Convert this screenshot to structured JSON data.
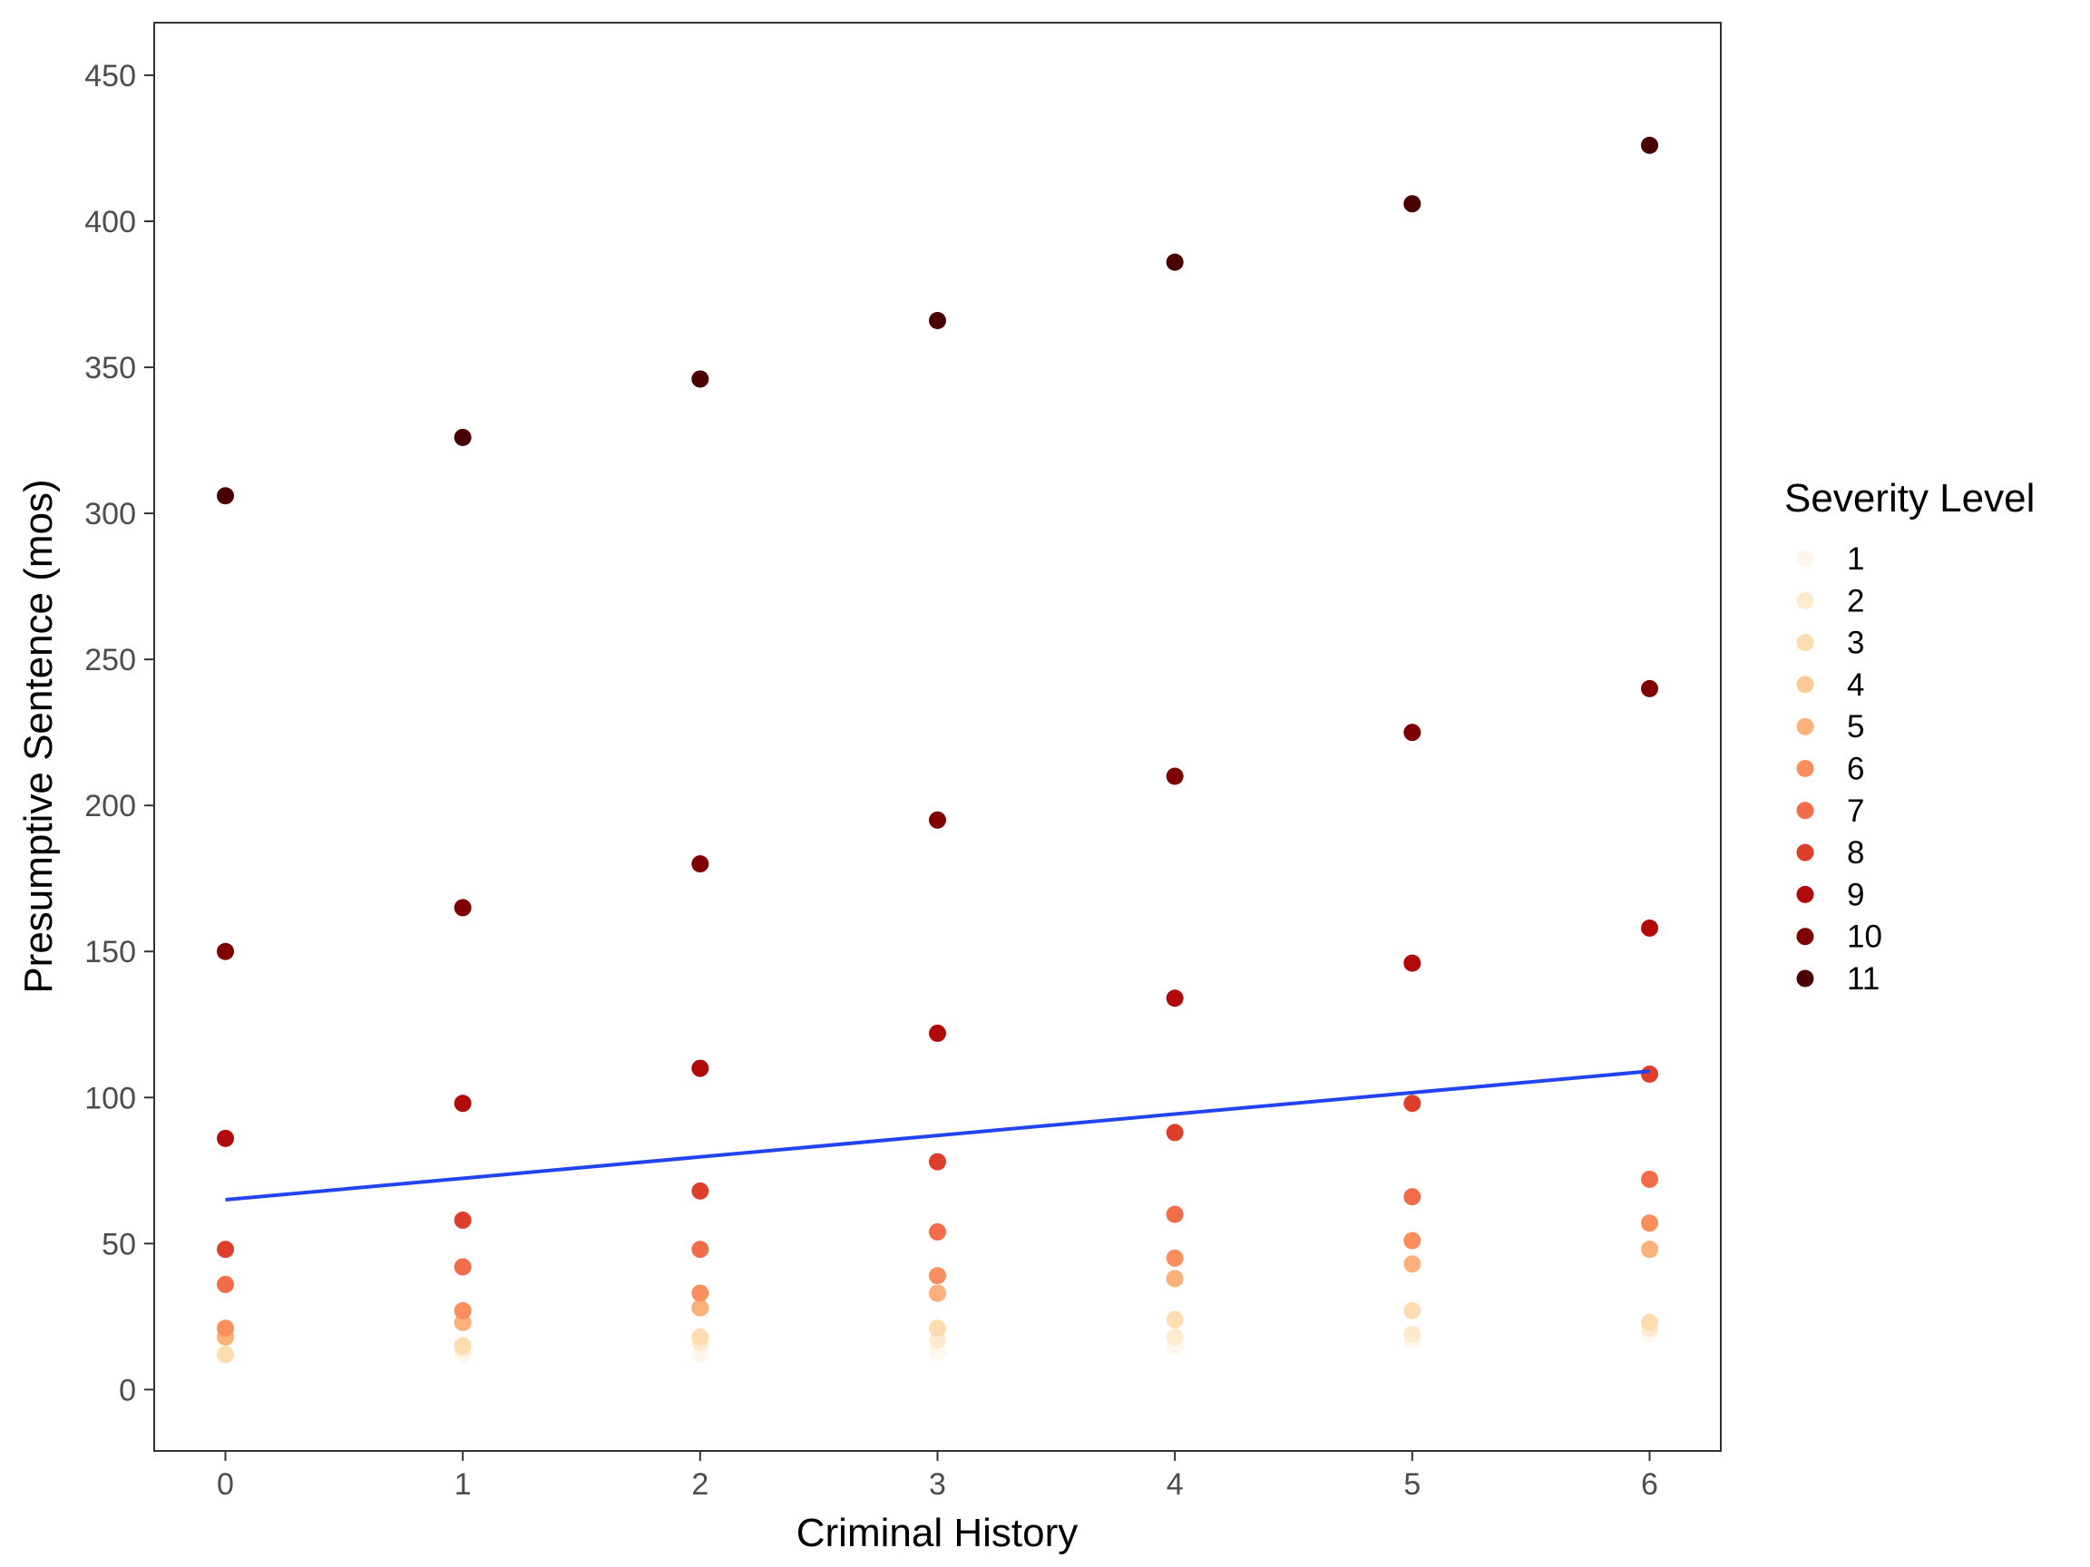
{
  "chart_data": {
    "type": "scatter",
    "title": "",
    "xlabel": "Criminal History",
    "ylabel": "Presumptive Sentence (mos)",
    "xlim": [
      -0.3,
      6.3
    ],
    "ylim": [
      -21,
      468
    ],
    "x_ticks": [
      0,
      1,
      2,
      3,
      4,
      5,
      6
    ],
    "y_ticks": [
      0,
      50,
      100,
      150,
      200,
      250,
      300,
      350,
      400,
      450
    ],
    "grid": false,
    "legend": {
      "title": "Severity Level",
      "position": "right"
    },
    "x": [
      0,
      1,
      2,
      3,
      4,
      5,
      6
    ],
    "series": [
      {
        "name": "1",
        "color": "#FFF7EC",
        "values": [
          12,
          12,
          12,
          13,
          15,
          17,
          19
        ]
      },
      {
        "name": "2",
        "color": "#FEEBCF",
        "values": [
          12,
          14,
          16,
          17,
          18,
          19,
          21
        ]
      },
      {
        "name": "3",
        "color": "#FDDCAF",
        "values": [
          12,
          15,
          18,
          21,
          24,
          27,
          23
        ]
      },
      {
        "name": "4",
        "color": "#FDCA94",
        "values": [
          18,
          23,
          28,
          33,
          38,
          43,
          48
        ]
      },
      {
        "name": "5",
        "color": "#FDB07A",
        "values": [
          18,
          23,
          28,
          33,
          38,
          43,
          48
        ]
      },
      {
        "name": "6",
        "color": "#FA8E5D",
        "values": [
          21,
          27,
          33,
          39,
          45,
          51,
          57
        ]
      },
      {
        "name": "7",
        "color": "#F16C49",
        "values": [
          36,
          42,
          48,
          54,
          60,
          66,
          72
        ]
      },
      {
        "name": "8",
        "color": "#DD3F2B",
        "values": [
          48,
          58,
          68,
          78,
          88,
          98,
          108
        ]
      },
      {
        "name": "9",
        "color": "#B10A0B",
        "values": [
          86,
          98,
          110,
          122,
          134,
          146,
          158
        ]
      },
      {
        "name": "10",
        "color": "#7F0000",
        "values": [
          150,
          165,
          180,
          195,
          210,
          225,
          240
        ]
      },
      {
        "name": "11",
        "color": "#4A0000",
        "values": [
          306,
          326,
          346,
          366,
          386,
          406,
          426
        ]
      }
    ],
    "trend_line": {
      "color": "#2342F0",
      "x": [
        0,
        6
      ],
      "y": [
        65,
        109
      ]
    }
  }
}
